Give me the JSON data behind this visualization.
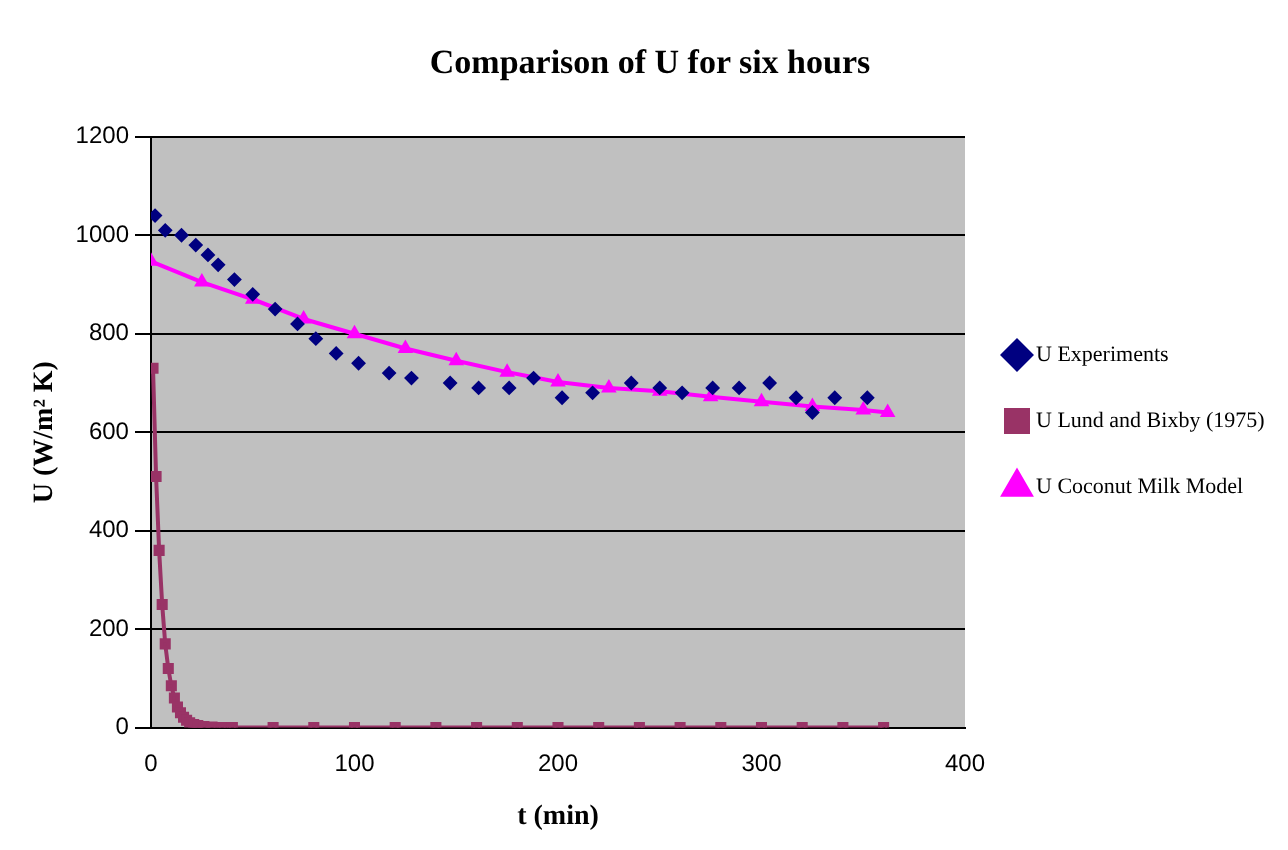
{
  "chart_data": {
    "type": "scatter",
    "title": "Comparison of U for six hours",
    "xlabel": "t (min)",
    "ylabel": "U (W/m² K)",
    "xlim": [
      0,
      400
    ],
    "xticks": [
      0,
      100,
      200,
      300,
      400
    ],
    "ylim": [
      0,
      1200
    ],
    "yticks": [
      0,
      200,
      400,
      600,
      800,
      1000,
      1200
    ],
    "grid": "y",
    "legend": "right",
    "series": [
      {
        "name": "U Experiments",
        "marker": "diamond",
        "color": "#000080",
        "x": [
          2,
          7,
          15,
          22,
          28,
          33,
          41,
          50,
          61,
          72,
          81,
          91,
          102,
          117,
          128,
          147,
          161,
          176,
          188,
          202,
          217,
          236,
          250,
          261,
          276,
          289,
          304,
          317,
          325,
          336,
          352
        ],
        "values": [
          1040,
          1010,
          1000,
          980,
          960,
          940,
          910,
          880,
          850,
          820,
          790,
          760,
          740,
          720,
          710,
          700,
          690,
          690,
          710,
          670,
          680,
          700,
          690,
          680,
          690,
          690,
          700,
          670,
          640,
          670,
          670
        ]
      },
      {
        "name": "U Lund and Bixby (1975)",
        "type": "line",
        "marker": "square",
        "color": "#993366",
        "x": [
          1,
          2.5,
          4,
          5.5,
          7,
          8.5,
          10,
          11.5,
          13,
          14.5,
          16,
          17.5,
          19,
          21,
          23,
          26,
          30,
          35,
          40,
          60,
          80,
          100,
          120,
          140,
          160,
          180,
          200,
          220,
          240,
          260,
          280,
          300,
          320,
          340,
          360
        ],
        "values": [
          730,
          510,
          360,
          250,
          170,
          120,
          85,
          60,
          42,
          30,
          21,
          15,
          10,
          6,
          4,
          2,
          1,
          0,
          0,
          0,
          0,
          0,
          0,
          0,
          0,
          0,
          0,
          0,
          0,
          0,
          0,
          0,
          0,
          0,
          0
        ]
      },
      {
        "name": "U Coconut Milk Model",
        "type": "line",
        "marker": "triangle",
        "color": "#ff00ff",
        "x": [
          0,
          25,
          50,
          75,
          100,
          125,
          150,
          175,
          200,
          225,
          250,
          275,
          300,
          325,
          350,
          362
        ],
        "values": [
          947,
          905,
          870,
          830,
          800,
          770,
          745,
          722,
          702,
          690,
          683,
          672,
          662,
          652,
          645,
          640
        ]
      }
    ]
  }
}
